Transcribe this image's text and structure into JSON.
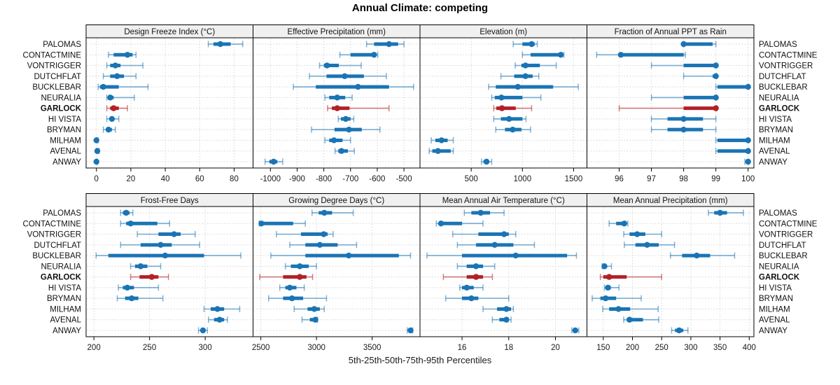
{
  "title": "Annual Climate: competing",
  "xlabel": "5th-25th-50th-75th-95th Percentiles",
  "colors": {
    "normal": "#1a74b4",
    "highlight": "#b22126",
    "strip_bg": "#f0f0f0",
    "grid": "#d4d4d4",
    "border": "#000000",
    "tick_text": "#1a1a1a"
  },
  "chart_data": {
    "type": "scatter",
    "subtype": "percentile-interval-dotplot",
    "percentile_levels": [
      5,
      25,
      50,
      75,
      95
    ],
    "legend": "none",
    "grid": "dotted",
    "highlight_category": "GARLOCK",
    "categories": [
      "PALOMAS",
      "CONTACTMINE",
      "VONTRIGGER",
      "DUTCHFLAT",
      "BUCKLEBAR",
      "NEURALIA",
      "GARLOCK",
      "HI VISTA",
      "BRYMAN",
      "MILHAM",
      "AVENAL",
      "ANWAY"
    ],
    "panels": [
      {
        "title": "Design Freeze Index (°C)",
        "xlim": [
          -6,
          91
        ],
        "ticks": [
          0,
          20,
          40,
          60,
          80
        ],
        "tick_labels": [
          "0",
          "20",
          "40",
          "60",
          "80"
        ],
        "values": {
          "PALOMAS": [
            65,
            68,
            72,
            78,
            85
          ],
          "CONTACTMINE": [
            7,
            10,
            18,
            21,
            23
          ],
          "VONTRIGGER": [
            6,
            8,
            11,
            14,
            27
          ],
          "DUTCHFLAT": [
            4,
            8,
            12,
            16,
            23
          ],
          "BUCKLEBAR": [
            1,
            2,
            4,
            13,
            30
          ],
          "NEURALIA": [
            6,
            7,
            8,
            10,
            22
          ],
          "GARLOCK": [
            6,
            8,
            10,
            13,
            18
          ],
          "HI VISTA": [
            6,
            8,
            9,
            10,
            13
          ],
          "BRYMAN": [
            4,
            6,
            7,
            9,
            11
          ],
          "MILHAM": [
            0,
            0,
            0,
            0.3,
            1
          ],
          "AVENAL": [
            0,
            0,
            0.5,
            1,
            1.5
          ],
          "ANWAY": [
            0,
            0,
            0,
            0.2,
            0.6
          ]
        }
      },
      {
        "title": "Effective Precipitation (mm)",
        "xlim": [
          -1065,
          -440
        ],
        "ticks": [
          -1000,
          -900,
          -800,
          -700,
          -600,
          -500
        ],
        "tick_labels": [
          "-1000",
          "-900",
          "-800",
          "-700",
          "-600",
          "-500"
        ],
        "values": {
          "PALOMAS": [
            -640,
            -612,
            -556,
            -522,
            -500
          ],
          "CONTACTMINE": [
            -740,
            -700,
            -612,
            -606,
            -598
          ],
          "VONTRIGGER": [
            -816,
            -800,
            -788,
            -744,
            -660
          ],
          "DUTCHFLAT": [
            -854,
            -790,
            -722,
            -650,
            -566
          ],
          "BUCKLEBAR": [
            -914,
            -830,
            -672,
            -556,
            -464
          ],
          "NEURALIA": [
            -796,
            -780,
            -750,
            -720,
            -694
          ],
          "GARLOCK": [
            -786,
            -770,
            -750,
            -704,
            -556
          ],
          "HI VISTA": [
            -746,
            -736,
            -718,
            -700,
            -688
          ],
          "BRYMAN": [
            -846,
            -760,
            -706,
            -658,
            -590
          ],
          "MILHAM": [
            -796,
            -780,
            -762,
            -730,
            -700
          ],
          "AVENAL": [
            -758,
            -746,
            -734,
            -710,
            -686
          ],
          "ANWAY": [
            -1020,
            -1004,
            -988,
            -974,
            -954
          ]
        }
      },
      {
        "title": "Elevation (m)",
        "xlim": [
          0,
          1630
        ],
        "ticks": [
          500,
          1000,
          1500
        ],
        "tick_labels": [
          "500",
          "1000",
          "1500"
        ],
        "values": {
          "PALOMAS": [
            910,
            1000,
            1090,
            1120,
            1145
          ],
          "CONTACTMINE": [
            1000,
            1080,
            1375,
            1395,
            1405
          ],
          "VONTRIGGER": [
            930,
            990,
            1030,
            1170,
            1330
          ],
          "DUTCHFLAT": [
            790,
            920,
            1030,
            1100,
            1160
          ],
          "BUCKLEBAR": [
            670,
            740,
            955,
            1300,
            1545
          ],
          "NEURALIA": [
            700,
            730,
            795,
            1000,
            1180
          ],
          "GARLOCK": [
            720,
            745,
            800,
            935,
            1090
          ],
          "HI VISTA": [
            720,
            790,
            870,
            1000,
            1035
          ],
          "BRYMAN": [
            740,
            830,
            905,
            990,
            1080
          ],
          "MILHAM": [
            110,
            150,
            210,
            270,
            325
          ],
          "AVENAL": [
            90,
            120,
            175,
            300,
            325
          ],
          "ANWAY": [
            600,
            620,
            650,
            672,
            700
          ]
        }
      },
      {
        "title": "Fraction of Annual PPT as Rain",
        "xlim": [
          95.0,
          100.18
        ],
        "ticks": [
          96,
          97,
          98,
          99,
          100
        ],
        "tick_labels": [
          "96",
          "97",
          "98",
          "99",
          "100"
        ],
        "values": {
          "PALOMAS": [
            98,
            98,
            98,
            98.9,
            99
          ],
          "CONTACTMINE": [
            95.3,
            96,
            96.05,
            98,
            98.05
          ],
          "VONTRIGGER": [
            97,
            98,
            99,
            99,
            99.02
          ],
          "DUTCHFLAT": [
            98,
            98.9,
            99,
            99,
            99.02
          ],
          "BUCKLEBAR": [
            99,
            99.05,
            100,
            100,
            100.02
          ],
          "NEURALIA": [
            97,
            98,
            99,
            99,
            99.02
          ],
          "GARLOCK": [
            96,
            98,
            99,
            99,
            99.02
          ],
          "HI VISTA": [
            97,
            97.5,
            98,
            98.6,
            99
          ],
          "BRYMAN": [
            97,
            97.5,
            98,
            98.6,
            99
          ],
          "MILHAM": [
            99,
            99.05,
            100,
            100,
            100.02
          ],
          "AVENAL": [
            99,
            99.05,
            100,
            100,
            100.02
          ],
          "ANWAY": [
            99.9,
            99.95,
            100,
            100,
            100.02
          ]
        }
      },
      {
        "title": "Frost-Free Days",
        "xlim": [
          193,
          343
        ],
        "ticks": [
          200,
          250,
          300
        ],
        "tick_labels": [
          "200",
          "250",
          "300"
        ],
        "values": {
          "PALOMAS": [
            224,
            226,
            229,
            232,
            235
          ],
          "CONTACTMINE": [
            224,
            229,
            233,
            257,
            268
          ],
          "VONTRIGGER": [
            239,
            258,
            272,
            278,
            291
          ],
          "DUTCHFLAT": [
            224,
            242,
            260,
            270,
            295
          ],
          "BUCKLEBAR": [
            202,
            213,
            264,
            299,
            332
          ],
          "NEURALIA": [
            233,
            237,
            242,
            248,
            260
          ],
          "GARLOCK": [
            233,
            241,
            252,
            258,
            267
          ],
          "HI VISTA": [
            222,
            226,
            230,
            236,
            258
          ],
          "BRYMAN": [
            221,
            228,
            234,
            240,
            262
          ],
          "MILHAM": [
            299,
            305,
            311,
            317,
            331
          ],
          "AVENAL": [
            303,
            308,
            313,
            317,
            320
          ],
          "ANWAY": [
            294,
            296,
            298,
            300,
            302
          ]
        }
      },
      {
        "title": "Growing Degree Days (°C)",
        "xlim": [
          2430,
          3930
        ],
        "ticks": [
          2500,
          3000,
          3500
        ],
        "tick_labels": [
          "2500",
          "3000",
          "3500"
        ],
        "values": {
          "PALOMAS": [
            2960,
            3020,
            3070,
            3140,
            3330
          ],
          "CONTACTMINE": [
            2485,
            2495,
            2505,
            2790,
            2900
          ],
          "VONTRIGGER": [
            2640,
            2860,
            3065,
            3100,
            3150
          ],
          "DUTCHFLAT": [
            2760,
            2900,
            3030,
            3190,
            3360
          ],
          "BUCKLEBAR": [
            2590,
            2900,
            3290,
            3740,
            3845
          ],
          "NEURALIA": [
            2720,
            2770,
            2850,
            2930,
            3000
          ],
          "GARLOCK": [
            2490,
            2700,
            2850,
            2910,
            2965
          ],
          "HI VISTA": [
            2670,
            2720,
            2760,
            2820,
            2890
          ],
          "BRYMAN": [
            2570,
            2700,
            2780,
            2880,
            3090
          ],
          "MILHAM": [
            2800,
            2920,
            2980,
            3030,
            3070
          ],
          "AVENAL": [
            2870,
            2940,
            2990,
            3000,
            3010
          ],
          "ANWAY": [
            3815,
            3830,
            3845,
            3855,
            3865
          ]
        }
      },
      {
        "title": "Mean Annual Air Temperature (°C)",
        "xlim": [
          14.2,
          21.35
        ],
        "ticks": [
          16,
          18,
          20
        ],
        "tick_labels": [
          "16",
          "18",
          "20"
        ],
        "values": {
          "PALOMAS": [
            16.1,
            16.4,
            16.8,
            17.2,
            17.8
          ],
          "CONTACTMINE": [
            14.9,
            15.0,
            15.1,
            16.0,
            16.9
          ],
          "VONTRIGGER": [
            15.6,
            16.7,
            17.8,
            18.0,
            18.3
          ],
          "DUTCHFLAT": [
            15.8,
            16.6,
            17.4,
            18.2,
            19.1
          ],
          "BUCKLEBAR": [
            14.5,
            16.0,
            18.3,
            20.5,
            20.9
          ],
          "NEURALIA": [
            15.8,
            16.2,
            16.6,
            16.9,
            17.4
          ],
          "GARLOCK": [
            15.2,
            16.2,
            16.6,
            16.9,
            17.3
          ],
          "HI VISTA": [
            15.9,
            16.0,
            16.2,
            16.5,
            16.9
          ],
          "BRYMAN": [
            15.3,
            16.0,
            16.4,
            16.7,
            18.0
          ],
          "MILHAM": [
            16.9,
            17.5,
            17.9,
            18.1,
            18.2
          ],
          "AVENAL": [
            17.3,
            17.6,
            17.9,
            18.0,
            18.1
          ],
          "ANWAY": [
            20.7,
            20.8,
            20.85,
            20.9,
            21.0
          ]
        }
      },
      {
        "title": "Mean Annual Precipitation (mm)",
        "xlim": [
          122,
          408
        ],
        "ticks": [
          150,
          200,
          250,
          300,
          350,
          400
        ],
        "tick_labels": [
          "150",
          "200",
          "250",
          "300",
          "350",
          "400"
        ],
        "values": {
          "PALOMAS": [
            330,
            340,
            350,
            362,
            390
          ],
          "CONTACTMINE": [
            160,
            172,
            186,
            189,
            192
          ],
          "VONTRIGGER": [
            185,
            195,
            208,
            222,
            250
          ],
          "DUTCHFLAT": [
            186,
            205,
            225,
            245,
            272
          ],
          "BUCKLEBAR": [
            265,
            285,
            310,
            333,
            375
          ],
          "NEURALIA": [
            148,
            150,
            152,
            156,
            164
          ],
          "GARLOCK": [
            145,
            150,
            160,
            190,
            250
          ],
          "HI VISTA": [
            152,
            155,
            158,
            163,
            177
          ],
          "BRYMAN": [
            131,
            145,
            154,
            172,
            215
          ],
          "MILHAM": [
            149,
            160,
            176,
            196,
            244
          ],
          "AVENAL": [
            185,
            190,
            195,
            218,
            245
          ],
          "ANWAY": [
            267,
            273,
            280,
            287,
            295
          ]
        }
      }
    ]
  }
}
